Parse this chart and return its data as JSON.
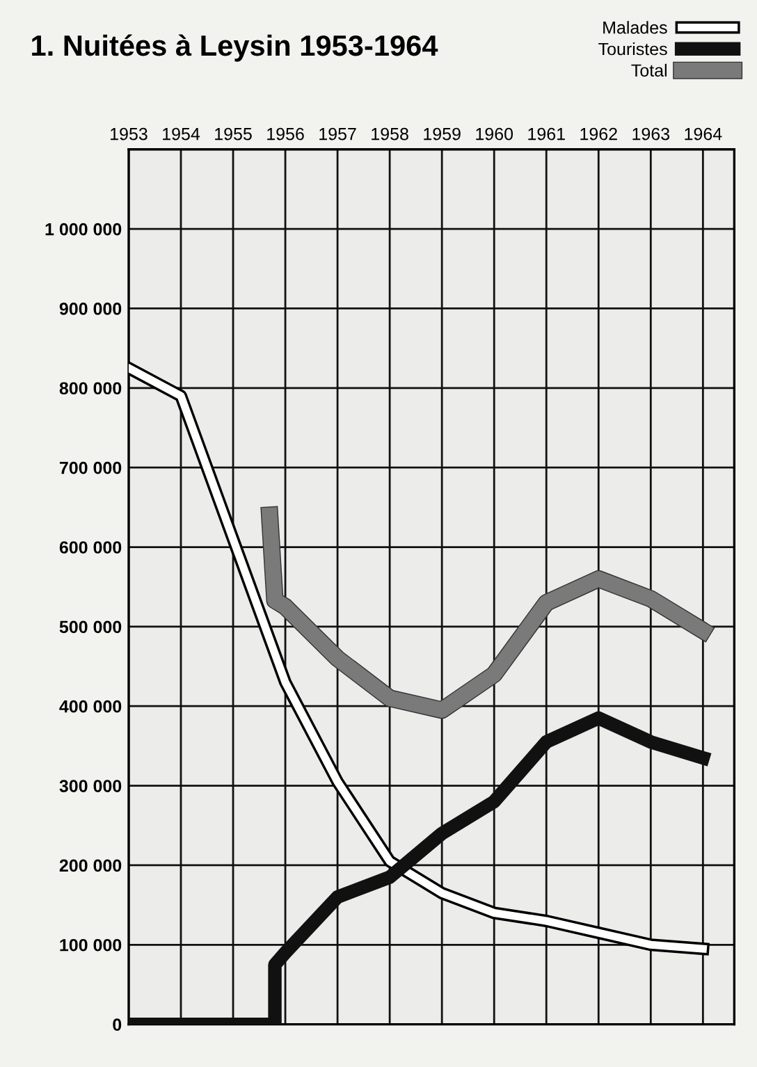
{
  "chart_data": {
    "type": "line",
    "title": "1. Nuitées à Leysin 1953-1964",
    "xlim": [
      1953,
      1964.6
    ],
    "xticks": [
      1953,
      1954,
      1955,
      1956,
      1957,
      1958,
      1959,
      1960,
      1961,
      1962,
      1963,
      1964
    ],
    "ylim": [
      0,
      1100000
    ],
    "yticks": [
      {
        "value": 0,
        "label": "0"
      },
      {
        "value": 100000,
        "label": "100 000"
      },
      {
        "value": 200000,
        "label": "200 000"
      },
      {
        "value": 300000,
        "label": "300 000"
      },
      {
        "value": 400000,
        "label": "400 000"
      },
      {
        "value": 500000,
        "label": "500 000"
      },
      {
        "value": 600000,
        "label": "600 000"
      },
      {
        "value": 700000,
        "label": "700 000"
      },
      {
        "value": 800000,
        "label": "800 000"
      },
      {
        "value": 900000,
        "label": "900 000"
      },
      {
        "value": 1000000,
        "label": "1 000 000"
      }
    ],
    "grid": true,
    "legend": "top right",
    "marker": "none",
    "line_style": "solid",
    "series": [
      {
        "name": "Malades",
        "color": "#ffffff",
        "x": [
          1953,
          1954,
          1955,
          1956,
          1957,
          1958,
          1959,
          1960,
          1961,
          1962,
          1963,
          1964
        ],
        "values": [
          825000,
          790000,
          610000,
          430000,
          305000,
          205000,
          165000,
          140000,
          130000,
          115000,
          100000,
          95000
        ]
      },
      {
        "name": "Touristes",
        "color": "#111111",
        "x": [
          1953,
          1955.8,
          1955.8,
          1956,
          1957,
          1958,
          1959,
          1960,
          1961,
          1962,
          1963,
          1964
        ],
        "values": [
          0,
          0,
          75000,
          90000,
          160000,
          185000,
          240000,
          280000,
          355000,
          385000,
          355000,
          335000
        ]
      },
      {
        "name": "Total",
        "color": "#7a7a7a",
        "x": [
          1955.7,
          1955.8,
          1956,
          1957,
          1958,
          1959,
          1960,
          1961,
          1962,
          1963,
          1964
        ],
        "values": [
          640000,
          533000,
          525000,
          460000,
          410000,
          395000,
          440000,
          530000,
          560000,
          535000,
          495000
        ]
      }
    ]
  }
}
